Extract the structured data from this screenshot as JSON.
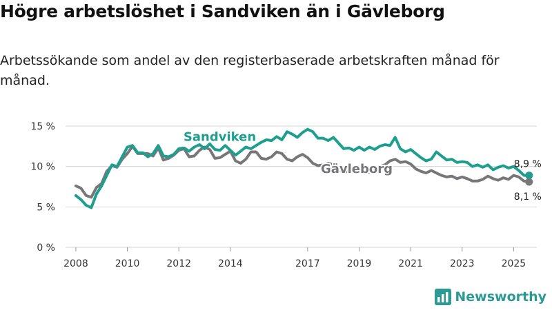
{
  "title": "Högre arbetslöshet i Sandviken än i Gävleborg",
  "subtitle": "Arbetssökande som andel av den registerbaserade arbetskraften månad för månad.",
  "brand": "Newsworthy",
  "chart_data": {
    "type": "line",
    "xlim": [
      2007.6,
      2025.9
    ],
    "ylim": [
      0,
      15
    ],
    "y_ticks": [
      0,
      5,
      10,
      15
    ],
    "y_tick_labels": [
      "0 %",
      "5 %",
      "10 %",
      "15 %"
    ],
    "x_ticks": [
      2008,
      2010,
      2012,
      2014,
      2017,
      2019,
      2021,
      2023,
      2025
    ],
    "x_tick_labels": [
      "2008",
      "2010",
      "2012",
      "2014",
      "2017",
      "2019",
      "2021",
      "2023",
      "2025"
    ],
    "grid": true,
    "series": [
      {
        "name": "Sandviken",
        "color": "#1e9e8e",
        "end_label": "8,9 %",
        "points": [
          [
            2008.0,
            6.4
          ],
          [
            2008.2,
            5.9
          ],
          [
            2008.4,
            5.2
          ],
          [
            2008.6,
            4.9
          ],
          [
            2008.8,
            6.6
          ],
          [
            2009.0,
            7.6
          ],
          [
            2009.2,
            8.9
          ],
          [
            2009.4,
            10.2
          ],
          [
            2009.6,
            10.0
          ],
          [
            2009.8,
            11.2
          ],
          [
            2010.0,
            12.4
          ],
          [
            2010.2,
            12.6
          ],
          [
            2010.4,
            11.7
          ],
          [
            2010.6,
            11.7
          ],
          [
            2010.8,
            11.2
          ],
          [
            2011.0,
            11.6
          ],
          [
            2011.2,
            12.6
          ],
          [
            2011.4,
            11.3
          ],
          [
            2011.6,
            11.2
          ],
          [
            2011.8,
            11.5
          ],
          [
            2012.0,
            12.2
          ],
          [
            2012.2,
            12.3
          ],
          [
            2012.4,
            11.9
          ],
          [
            2012.6,
            12.4
          ],
          [
            2012.8,
            12.7
          ],
          [
            2013.0,
            12.2
          ],
          [
            2013.2,
            12.8
          ],
          [
            2013.4,
            12.1
          ],
          [
            2013.6,
            12.0
          ],
          [
            2013.8,
            12.6
          ],
          [
            2014.0,
            12.0
          ],
          [
            2014.2,
            11.4
          ],
          [
            2014.4,
            11.9
          ],
          [
            2014.6,
            12.4
          ],
          [
            2014.8,
            12.2
          ],
          [
            2015.0,
            12.6
          ],
          [
            2015.2,
            13.0
          ],
          [
            2015.4,
            13.3
          ],
          [
            2015.6,
            13.2
          ],
          [
            2015.8,
            13.7
          ],
          [
            2016.0,
            13.3
          ],
          [
            2016.2,
            14.3
          ],
          [
            2016.4,
            14.0
          ],
          [
            2016.6,
            13.6
          ],
          [
            2016.8,
            14.2
          ],
          [
            2017.0,
            14.6
          ],
          [
            2017.2,
            14.3
          ],
          [
            2017.4,
            13.5
          ],
          [
            2017.6,
            13.5
          ],
          [
            2017.8,
            13.2
          ],
          [
            2018.0,
            13.6
          ],
          [
            2018.2,
            12.9
          ],
          [
            2018.4,
            12.2
          ],
          [
            2018.6,
            12.3
          ],
          [
            2018.8,
            12.0
          ],
          [
            2019.0,
            12.4
          ],
          [
            2019.2,
            12.0
          ],
          [
            2019.4,
            12.4
          ],
          [
            2019.6,
            12.1
          ],
          [
            2019.8,
            12.5
          ],
          [
            2020.0,
            12.7
          ],
          [
            2020.2,
            12.6
          ],
          [
            2020.4,
            13.6
          ],
          [
            2020.6,
            12.2
          ],
          [
            2020.8,
            11.8
          ],
          [
            2021.0,
            12.1
          ],
          [
            2021.2,
            11.6
          ],
          [
            2021.4,
            11.1
          ],
          [
            2021.6,
            10.7
          ],
          [
            2021.8,
            10.9
          ],
          [
            2022.0,
            11.8
          ],
          [
            2022.2,
            11.3
          ],
          [
            2022.4,
            10.8
          ],
          [
            2022.6,
            10.9
          ],
          [
            2022.8,
            10.5
          ],
          [
            2023.0,
            10.6
          ],
          [
            2023.2,
            10.5
          ],
          [
            2023.4,
            10.0
          ],
          [
            2023.6,
            10.2
          ],
          [
            2023.8,
            9.9
          ],
          [
            2024.0,
            10.2
          ],
          [
            2024.2,
            9.6
          ],
          [
            2024.4,
            9.9
          ],
          [
            2024.6,
            10.1
          ],
          [
            2024.8,
            9.8
          ],
          [
            2025.0,
            10.0
          ],
          [
            2025.2,
            9.5
          ],
          [
            2025.4,
            8.9
          ],
          [
            2025.6,
            8.9
          ]
        ]
      },
      {
        "name": "Gävleborg",
        "color": "#77777a",
        "end_label": "8,1 %",
        "points": [
          [
            2008.0,
            7.6
          ],
          [
            2008.2,
            7.3
          ],
          [
            2008.4,
            6.4
          ],
          [
            2008.6,
            6.2
          ],
          [
            2008.8,
            7.4
          ],
          [
            2009.0,
            7.9
          ],
          [
            2009.2,
            9.4
          ],
          [
            2009.4,
            10.1
          ],
          [
            2009.6,
            9.9
          ],
          [
            2009.8,
            10.9
          ],
          [
            2010.0,
            11.6
          ],
          [
            2010.2,
            12.5
          ],
          [
            2010.4,
            11.6
          ],
          [
            2010.6,
            11.6
          ],
          [
            2010.8,
            11.6
          ],
          [
            2011.0,
            11.3
          ],
          [
            2011.2,
            12.3
          ],
          [
            2011.4,
            10.8
          ],
          [
            2011.6,
            11.0
          ],
          [
            2011.8,
            11.4
          ],
          [
            2012.0,
            12.0
          ],
          [
            2012.2,
            12.2
          ],
          [
            2012.4,
            11.2
          ],
          [
            2012.6,
            11.3
          ],
          [
            2012.8,
            12.0
          ],
          [
            2013.0,
            12.4
          ],
          [
            2013.2,
            12.1
          ],
          [
            2013.4,
            11.0
          ],
          [
            2013.6,
            11.1
          ],
          [
            2013.8,
            11.5
          ],
          [
            2014.0,
            11.9
          ],
          [
            2014.2,
            10.7
          ],
          [
            2014.4,
            10.4
          ],
          [
            2014.6,
            10.9
          ],
          [
            2014.8,
            11.8
          ],
          [
            2015.0,
            11.8
          ],
          [
            2015.2,
            11.0
          ],
          [
            2015.4,
            10.9
          ],
          [
            2015.6,
            11.2
          ],
          [
            2015.8,
            11.8
          ],
          [
            2016.0,
            11.6
          ],
          [
            2016.2,
            10.9
          ],
          [
            2016.4,
            10.7
          ],
          [
            2016.6,
            11.2
          ],
          [
            2016.8,
            11.5
          ],
          [
            2017.0,
            11.1
          ],
          [
            2017.2,
            10.4
          ],
          [
            2017.4,
            10.1
          ],
          [
            2017.6,
            10.2
          ],
          [
            2017.8,
            10.4
          ],
          [
            2018.0,
            10.2
          ],
          [
            2018.2,
            9.6
          ],
          [
            2018.4,
            9.3
          ],
          [
            2018.6,
            9.4
          ],
          [
            2018.8,
            9.8
          ],
          [
            2019.0,
            9.6
          ],
          [
            2019.2,
            9.2
          ],
          [
            2019.4,
            9.3
          ],
          [
            2019.6,
            9.6
          ],
          [
            2019.8,
            10.0
          ],
          [
            2020.0,
            10.2
          ],
          [
            2020.2,
            10.7
          ],
          [
            2020.4,
            10.9
          ],
          [
            2020.6,
            10.5
          ],
          [
            2020.8,
            10.6
          ],
          [
            2021.0,
            10.3
          ],
          [
            2021.2,
            9.7
          ],
          [
            2021.4,
            9.4
          ],
          [
            2021.6,
            9.2
          ],
          [
            2021.8,
            9.5
          ],
          [
            2022.0,
            9.2
          ],
          [
            2022.2,
            8.9
          ],
          [
            2022.4,
            8.7
          ],
          [
            2022.6,
            8.8
          ],
          [
            2022.8,
            8.5
          ],
          [
            2023.0,
            8.7
          ],
          [
            2023.2,
            8.5
          ],
          [
            2023.4,
            8.2
          ],
          [
            2023.6,
            8.2
          ],
          [
            2023.8,
            8.4
          ],
          [
            2024.0,
            8.8
          ],
          [
            2024.2,
            8.5
          ],
          [
            2024.4,
            8.3
          ],
          [
            2024.6,
            8.6
          ],
          [
            2024.8,
            8.4
          ],
          [
            2025.0,
            8.9
          ],
          [
            2025.2,
            8.7
          ],
          [
            2025.4,
            8.2
          ],
          [
            2025.6,
            8.1
          ]
        ]
      }
    ]
  }
}
